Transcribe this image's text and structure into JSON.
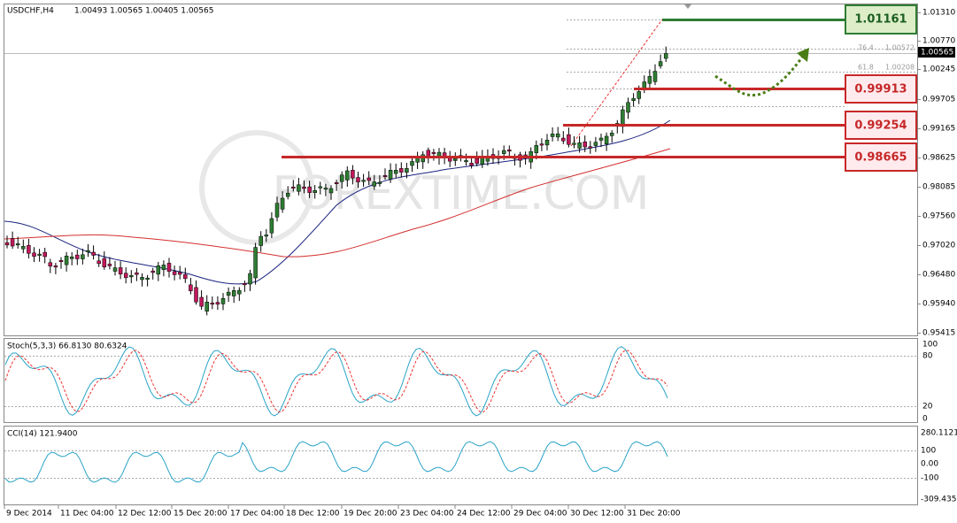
{
  "header": {
    "symbol": "USDCHF,H4",
    "ohlc": "1.00493 1.00565 1.00405 1.00565"
  },
  "price_axis": [
    "1.01310",
    "1.00770",
    "1.00245",
    "0.99705",
    "0.99165",
    "0.98625",
    "0.98085",
    "0.97560",
    "0.97020",
    "0.96480",
    "0.95940",
    "0.95415"
  ],
  "current_price": "1.00565",
  "levels": [
    "1.01161",
    "0.99913",
    "0.99254",
    "0.98665"
  ],
  "fibo": [
    {
      "ratio": "76.4",
      "price": "1.00572"
    },
    {
      "ratio": "61.8",
      "price": "1.00208"
    }
  ],
  "stoch": {
    "label": "Stoch(5,3,3) 66.8130 80.6324",
    "axis": [
      "100",
      "80",
      "20",
      "0"
    ]
  },
  "cci": {
    "label": "CCI(14) 121.9400",
    "axis": [
      "280.1121",
      "100",
      "0.00",
      "-100",
      "-309.435"
    ]
  },
  "time_axis": [
    "9 Dec 2014",
    "11 Dec 04:00",
    "12 Dec 12:00",
    "15 Dec 20:00",
    "17 Dec 04:00",
    "18 Dec 12:00",
    "19 Dec 20:00",
    "23 Dec 04:00",
    "24 Dec 12:00",
    "29 Dec 04:00",
    "30 Dec 12:00",
    "31 Dec 20:00"
  ],
  "watermark": "FOREXTIME.COM"
}
